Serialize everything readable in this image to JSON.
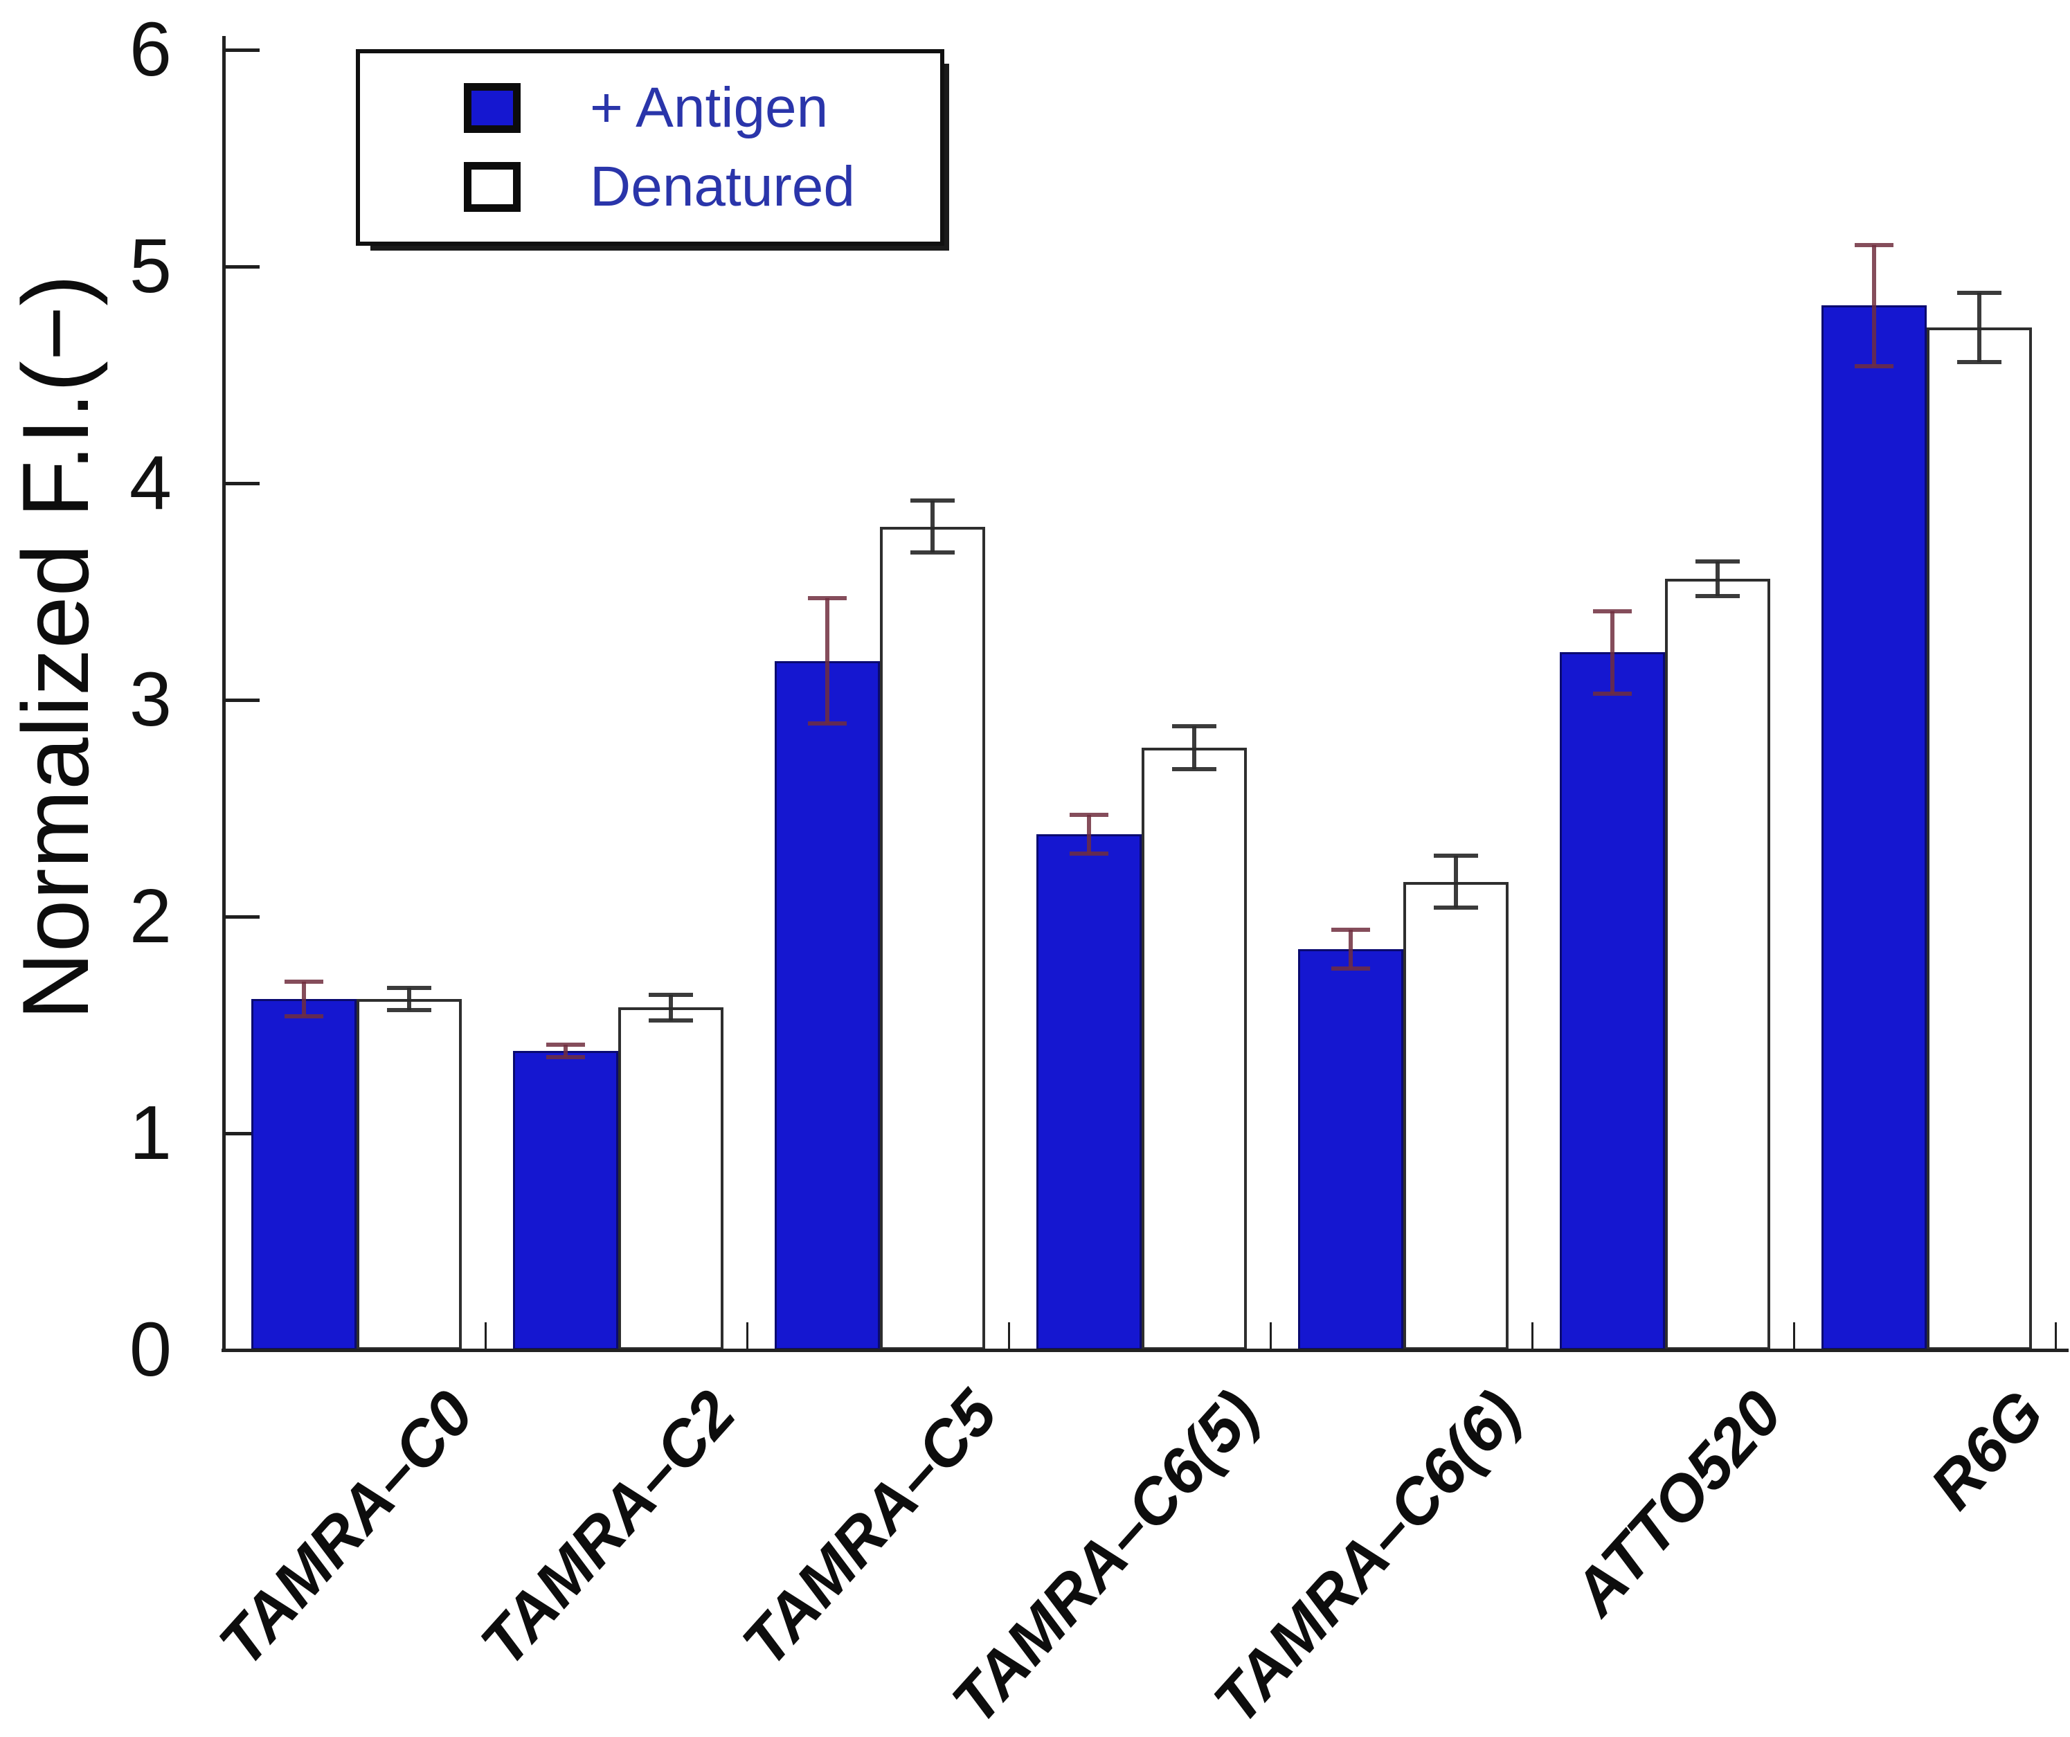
{
  "chart_data": {
    "type": "bar",
    "title": "",
    "xlabel": "",
    "ylabel": "Normalized F.I.(−)",
    "ylim": [
      0,
      6
    ],
    "yticks": [
      0,
      1,
      2,
      3,
      4,
      5,
      6
    ],
    "grid": false,
    "legend_position": "top-left",
    "categories": [
      "TAMRA–C0",
      "TAMRA–C2",
      "TAMRA–C5",
      "TAMRA–C6(5)",
      "TAMRA–C6(6)",
      "ATTO520",
      "R6G"
    ],
    "series": [
      {
        "name": "+ Antigen",
        "fill": "#1517d0",
        "edge": "#0a0a70",
        "error_color": "rgba(112,46,62,0.85)",
        "values": [
          1.62,
          1.38,
          3.18,
          2.38,
          1.85,
          3.22,
          4.82
        ],
        "errors": [
          0.08,
          0.03,
          0.29,
          0.09,
          0.09,
          0.19,
          0.28
        ]
      },
      {
        "name": "Denatured",
        "fill": "#ffffff",
        "edge": "#2e2e2e",
        "error_color": "rgba(42,42,42,0.92)",
        "values": [
          1.62,
          1.58,
          3.8,
          2.78,
          2.16,
          3.56,
          4.72
        ],
        "errors": [
          0.05,
          0.06,
          0.12,
          0.1,
          0.12,
          0.08,
          0.16
        ]
      }
    ]
  },
  "legend": {
    "text_color": "#2a35aa"
  },
  "axes": {
    "y_tick_labels": [
      "0",
      "1",
      "2",
      "3",
      "4",
      "5",
      "6"
    ]
  }
}
